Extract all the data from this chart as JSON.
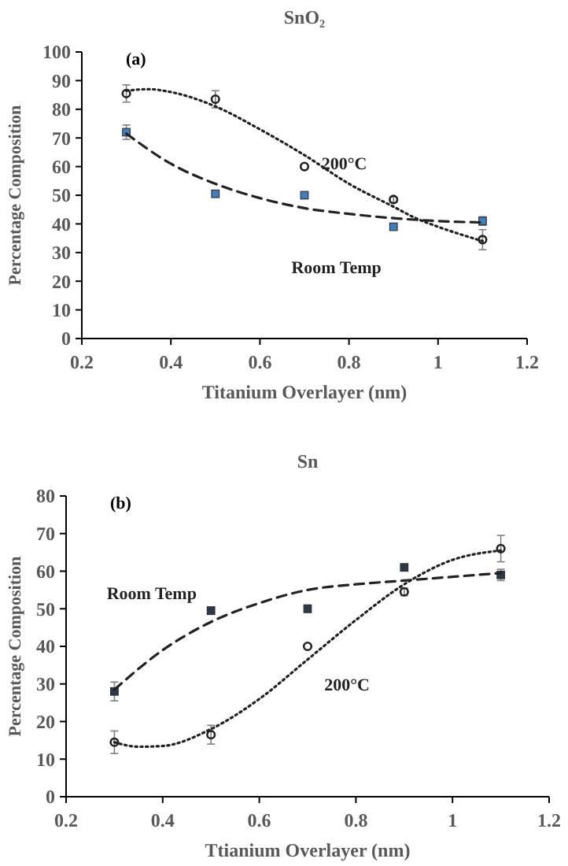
{
  "chart_data": [
    {
      "type": "scatter",
      "title": "SnO₂",
      "xlabel": "Titanium Overlayer (nm)",
      "ylabel": "Percentage Composition",
      "x": [
        0.3,
        0.5,
        0.7,
        0.9,
        1.1
      ],
      "xlim": [
        0.2,
        1.2
      ],
      "xticks": [
        0.2,
        0.4,
        0.6,
        0.8,
        1,
        1.2
      ],
      "ylim": [
        0,
        100
      ],
      "yticks": [
        0,
        10,
        20,
        30,
        40,
        50,
        60,
        70,
        80,
        90,
        100
      ],
      "grid": false,
      "legend": false,
      "annotations": [
        "(a)"
      ],
      "series": [
        {
          "type": "scatter",
          "color": "#222222",
          "marker": "circle",
          "values": [
            85.5,
            83.5,
            60,
            48.5,
            34.5
          ],
          "errors": [
            3,
            3,
            null,
            1,
            3.5
          ]
        },
        {
          "type": "scatter",
          "color": "#3f7fbf",
          "marker": "square",
          "values": [
            72,
            50.5,
            50,
            39,
            41
          ],
          "errors": [
            2.5,
            1,
            1,
            null,
            1.5
          ]
        },
        {
          "type": "line",
          "name": "200°C",
          "color": "#222222",
          "line_style": "dotted",
          "x": [
            0.3,
            0.35,
            0.4,
            0.5,
            0.6,
            0.7,
            0.8,
            0.9,
            0.95,
            1.0,
            1.1
          ],
          "values": [
            86.5,
            87,
            86,
            81,
            73,
            64,
            54,
            46,
            42,
            39,
            34
          ]
        },
        {
          "type": "line",
          "name": "Room Temp",
          "color": "#222222",
          "line_style": "dashed",
          "x": [
            0.3,
            0.4,
            0.5,
            0.6,
            0.7,
            0.8,
            0.9,
            1.0,
            1.1
          ],
          "values": [
            71.5,
            61,
            54,
            49,
            45.5,
            43.5,
            42,
            41,
            40.5
          ]
        }
      ]
    },
    {
      "type": "scatter",
      "title": "Sn",
      "xlabel": "Ttianium Overlayer (nm)",
      "ylabel": "Percentage Composition",
      "x": [
        0.3,
        0.5,
        0.7,
        0.9,
        1.1
      ],
      "xlim": [
        0.2,
        1.2
      ],
      "xticks": [
        0.2,
        0.4,
        0.6,
        0.8,
        1,
        1.2
      ],
      "ylim": [
        0,
        80
      ],
      "yticks": [
        0,
        10,
        20,
        30,
        40,
        50,
        60,
        70,
        80
      ],
      "grid": false,
      "legend": false,
      "annotations": [
        "(b)"
      ],
      "series": [
        {
          "type": "scatter",
          "color": "#2a3a4a",
          "marker": "square",
          "values": [
            28,
            49.5,
            50,
            61,
            59
          ],
          "errors": [
            2.5,
            1,
            1,
            null,
            1.5
          ]
        },
        {
          "type": "scatter",
          "color": "#222222",
          "marker": "circle",
          "values": [
            14.5,
            16.5,
            40,
            54.5,
            66
          ],
          "errors": [
            3,
            2.5,
            null,
            1,
            3.5
          ]
        },
        {
          "type": "line",
          "name": "Room Temp",
          "color": "#222222",
          "line_style": "dashed",
          "x": [
            0.3,
            0.4,
            0.5,
            0.6,
            0.7,
            0.8,
            0.9,
            1.0,
            1.1
          ],
          "values": [
            28.5,
            39,
            46.5,
            51.5,
            55,
            56.5,
            57.5,
            58.5,
            59.5
          ]
        },
        {
          "type": "line",
          "name": "200°C",
          "color": "#222222",
          "line_style": "dotted",
          "x": [
            0.3,
            0.35,
            0.4,
            0.5,
            0.6,
            0.7,
            0.8,
            0.9,
            1.0,
            1.1
          ],
          "values": [
            14.5,
            13.3,
            13.5,
            18,
            26,
            36.5,
            47,
            56.5,
            63,
            65.5
          ]
        }
      ]
    }
  ]
}
